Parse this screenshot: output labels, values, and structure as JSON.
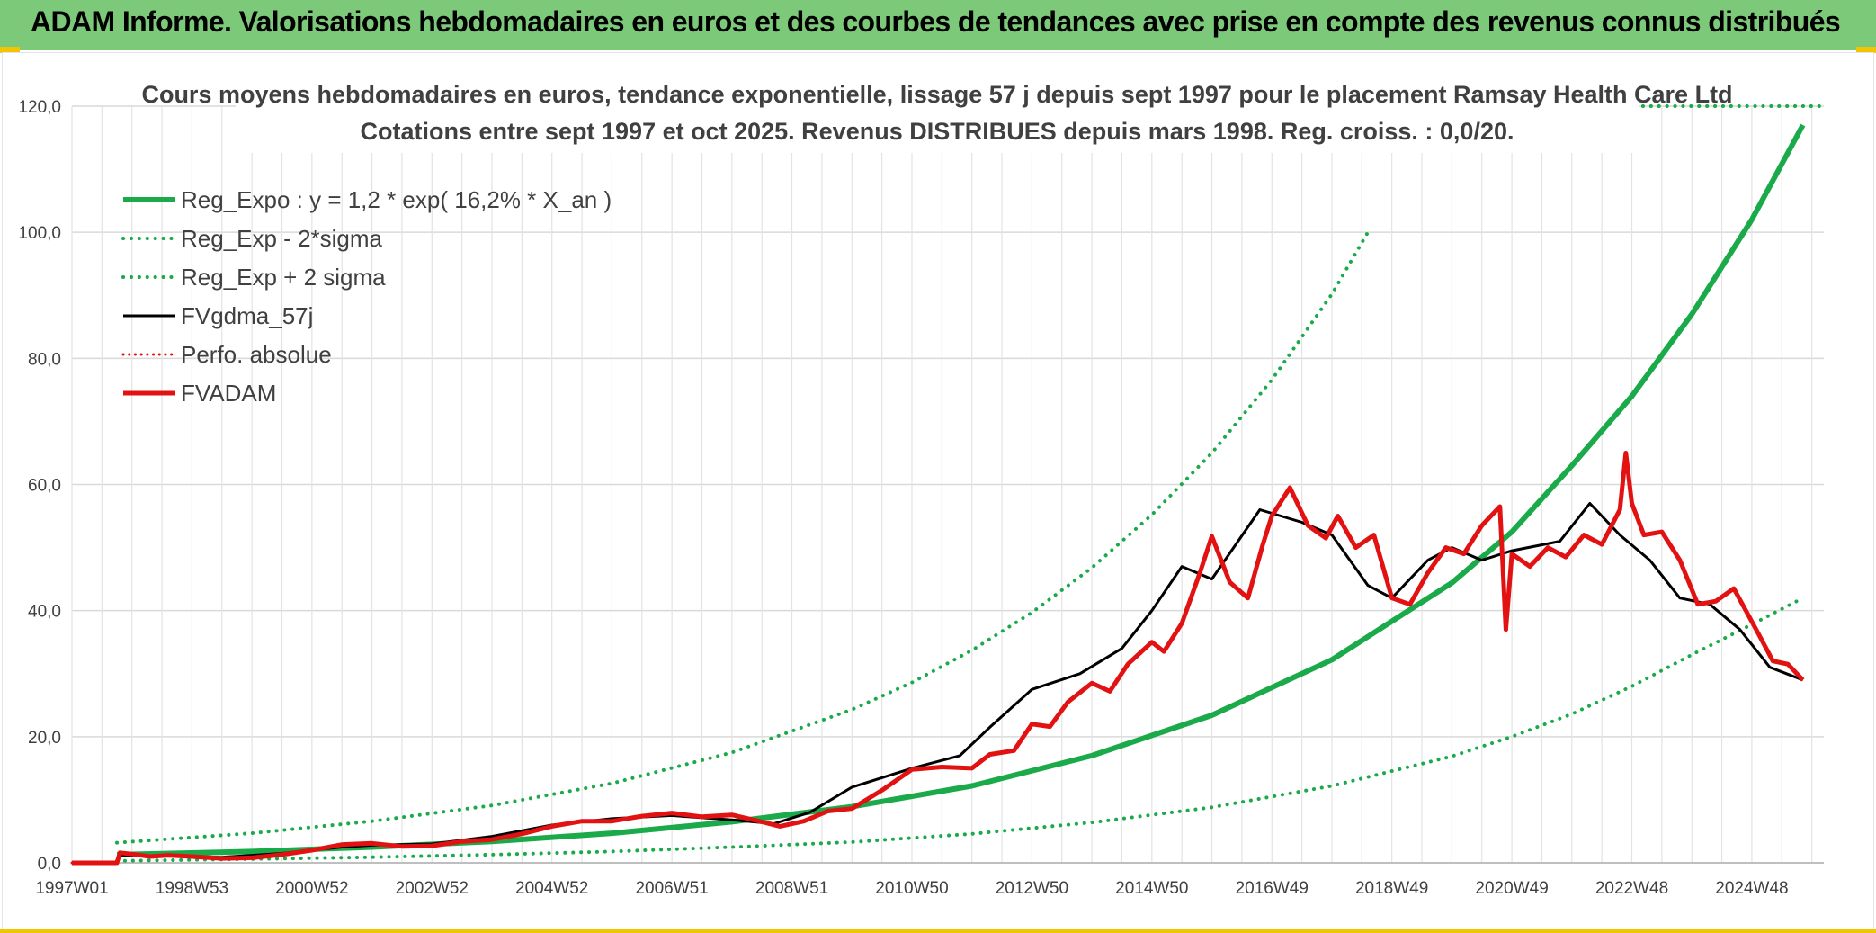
{
  "banner": {
    "title": "ADAM Informe. Valorisations hebdomadaires en euros et des courbes de tendances avec prise en compte des revenus connus distribués"
  },
  "chart_data": {
    "type": "line",
    "title": "Cours moyens hebdomadaires en euros, tendance exponentielle, lissage 57 j depuis sept 1997 pour le placement Ramsay Health Care Ltd",
    "subtitle": "Cotations entre sept 1997 et oct 2025. Revenus DISTRIBUES depuis mars 1998. Reg. croiss. : 0,0/20.",
    "xlabel": "",
    "ylabel": "",
    "xlim": [
      1997.0,
      2026.2
    ],
    "ylim": [
      0,
      120
    ],
    "x_ticks": [
      {
        "x": 1997.0,
        "label": "1997W01"
      },
      {
        "x": 1999.0,
        "label": "1998W53"
      },
      {
        "x": 2001.0,
        "label": "2000W52"
      },
      {
        "x": 2003.0,
        "label": "2002W52"
      },
      {
        "x": 2005.0,
        "label": "2004W52"
      },
      {
        "x": 2007.0,
        "label": "2006W51"
      },
      {
        "x": 2009.0,
        "label": "2008W51"
      },
      {
        "x": 2011.0,
        "label": "2010W50"
      },
      {
        "x": 2013.0,
        "label": "2012W50"
      },
      {
        "x": 2015.0,
        "label": "2014W50"
      },
      {
        "x": 2017.0,
        "label": "2016W49"
      },
      {
        "x": 2019.0,
        "label": "2018W49"
      },
      {
        "x": 2021.0,
        "label": "2020W49"
      },
      {
        "x": 2023.0,
        "label": "2022W48"
      },
      {
        "x": 2025.0,
        "label": "2024W48"
      }
    ],
    "y_ticks": [
      {
        "y": 0,
        "label": "0,0"
      },
      {
        "y": 20,
        "label": "20,0"
      },
      {
        "y": 40,
        "label": "40,0"
      },
      {
        "y": 60,
        "label": "60,0"
      },
      {
        "y": 80,
        "label": "80,0"
      },
      {
        "y": 100,
        "label": "100,0"
      },
      {
        "y": 120,
        "label": "120,0"
      }
    ],
    "grid": true,
    "legend_position": "top-left",
    "series": [
      {
        "name": "Reg_Expo : y = 1,2 * exp( 16,2% *  X_an )",
        "style": "solid",
        "color": "#1aaa4a",
        "width": 6,
        "x": [
          1997.75,
          2000,
          2002,
          2004,
          2006,
          2008,
          2010,
          2012,
          2014,
          2016,
          2018,
          2020,
          2021,
          2022,
          2023,
          2024,
          2025,
          2025.85
        ],
        "values": [
          1.3,
          1.8,
          2.5,
          3.4,
          4.7,
          6.5,
          8.9,
          12.2,
          17.0,
          23.4,
          32.2,
          44.4,
          52.5,
          63.0,
          74.0,
          87.0,
          102.0,
          117.0
        ]
      },
      {
        "name": "Reg_Exp - 2*sigma",
        "style": "dotted",
        "color": "#1aaa4a",
        "width": 4,
        "x": [
          1997.75,
          2000,
          2002,
          2004,
          2006,
          2008,
          2010,
          2012,
          2014,
          2016,
          2018,
          2020,
          2021,
          2022,
          2023,
          2024,
          2025,
          2025.85
        ],
        "values": [
          0.3,
          0.6,
          0.9,
          1.3,
          1.8,
          2.5,
          3.3,
          4.6,
          6.4,
          8.8,
          12.2,
          16.9,
          20.0,
          23.6,
          28.0,
          33.0,
          37.8,
          42.0
        ]
      },
      {
        "name": "Reg_Exp + 2 sigma",
        "style": "dotted",
        "color": "#1aaa4a",
        "width": 4,
        "x": [
          1997.75,
          2000,
          2002,
          2004,
          2006,
          2008,
          2010,
          2011,
          2012,
          2013,
          2014,
          2015,
          2016,
          2017,
          2018,
          2018.6
        ],
        "values": [
          3.2,
          4.7,
          6.6,
          9.1,
          12.6,
          17.5,
          24.3,
          28.6,
          33.7,
          39.7,
          46.8,
          55.2,
          65.0,
          76.6,
          90.2,
          100.0
        ]
      },
      {
        "name": "FVgdma_57j",
        "style": "solid",
        "color": "#000000",
        "width": 3,
        "x": [
          1997.0,
          1997.75,
          1997.8,
          1998.5,
          1999.5,
          2000.5,
          2001.5,
          2002.0,
          2003.0,
          2004.0,
          2005.0,
          2006.0,
          2007.0,
          2008.0,
          2008.7,
          2009.3,
          2010.0,
          2011.0,
          2011.8,
          2012.3,
          2013.0,
          2013.8,
          2014.5,
          2015.0,
          2015.5,
          2016.0,
          2016.8,
          2017.5,
          2018.0,
          2018.6,
          2019.0,
          2019.6,
          2020.0,
          2020.5,
          2021.0,
          2021.8,
          2022.3,
          2022.8,
          2023.3,
          2023.8,
          2024.3,
          2024.8,
          2025.3,
          2025.85
        ],
        "values": [
          0.0,
          0.0,
          1.2,
          1.1,
          0.9,
          1.5,
          2.5,
          2.8,
          3.0,
          4.2,
          6.0,
          7.0,
          7.5,
          6.8,
          6.2,
          8.0,
          12.0,
          15.0,
          17.0,
          21.5,
          27.5,
          30.0,
          34.0,
          40.0,
          47.0,
          45.0,
          56.0,
          54.0,
          52.0,
          44.0,
          42.0,
          48.0,
          50.0,
          48.0,
          49.5,
          51.0,
          57.0,
          52.0,
          48.0,
          42.0,
          41.0,
          37.0,
          31.0,
          29.0
        ]
      },
      {
        "name": "Perfo. absolue",
        "style": "dotted",
        "color": "#e31212",
        "width": 3,
        "x": [
          1997.0,
          1997.75
        ],
        "values": [
          0.0,
          0.0
        ]
      },
      {
        "name": "FVADAM",
        "style": "solid",
        "color": "#e31212",
        "width": 5,
        "x": [
          1997.0,
          1997.75,
          1997.8,
          1998.0,
          1998.3,
          1998.6,
          1999.0,
          1999.5,
          2000.0,
          2000.5,
          2001.0,
          2001.5,
          2002.0,
          2002.5,
          2003.0,
          2003.5,
          2004.0,
          2004.5,
          2005.0,
          2005.5,
          2006.0,
          2006.5,
          2007.0,
          2007.5,
          2008.0,
          2008.5,
          2008.8,
          2009.2,
          2009.6,
          2010.0,
          2010.5,
          2011.0,
          2011.5,
          2012.0,
          2012.3,
          2012.7,
          2013.0,
          2013.3,
          2013.6,
          2014.0,
          2014.3,
          2014.6,
          2015.0,
          2015.2,
          2015.5,
          2015.8,
          2016.0,
          2016.3,
          2016.6,
          2016.85,
          2017.0,
          2017.3,
          2017.6,
          2017.9,
          2018.1,
          2018.4,
          2018.7,
          2019.0,
          2019.3,
          2019.6,
          2019.9,
          2020.2,
          2020.5,
          2020.8,
          2020.9,
          2021.0,
          2021.3,
          2021.6,
          2021.9,
          2022.2,
          2022.5,
          2022.8,
          2022.9,
          2023.0,
          2023.2,
          2023.5,
          2023.8,
          2024.1,
          2024.4,
          2024.7,
          2024.9,
          2025.1,
          2025.35,
          2025.6,
          2025.85
        ],
        "values": [
          0.0,
          0.0,
          1.6,
          1.4,
          1.0,
          1.2,
          1.0,
          0.7,
          0.8,
          1.3,
          2.0,
          2.9,
          3.1,
          2.6,
          2.7,
          3.4,
          3.7,
          4.6,
          5.8,
          6.6,
          6.6,
          7.4,
          7.9,
          7.3,
          7.6,
          6.5,
          5.8,
          6.6,
          8.2,
          8.6,
          11.5,
          14.8,
          15.2,
          15.0,
          17.2,
          17.8,
          22.0,
          21.6,
          25.5,
          28.5,
          27.2,
          31.5,
          35.0,
          33.5,
          38.0,
          46.0,
          51.8,
          44.5,
          42.0,
          50.5,
          55.0,
          59.5,
          53.5,
          51.5,
          55.0,
          50.0,
          52.0,
          42.0,
          41.0,
          46.0,
          50.0,
          49.0,
          53.5,
          56.5,
          37.0,
          49.0,
          47.0,
          50.0,
          48.5,
          52.0,
          50.5,
          56.0,
          65.0,
          57.0,
          52.0,
          52.5,
          48.0,
          41.0,
          41.5,
          43.5,
          40.0,
          36.5,
          32.0,
          31.5,
          29.0
        ]
      }
    ]
  }
}
